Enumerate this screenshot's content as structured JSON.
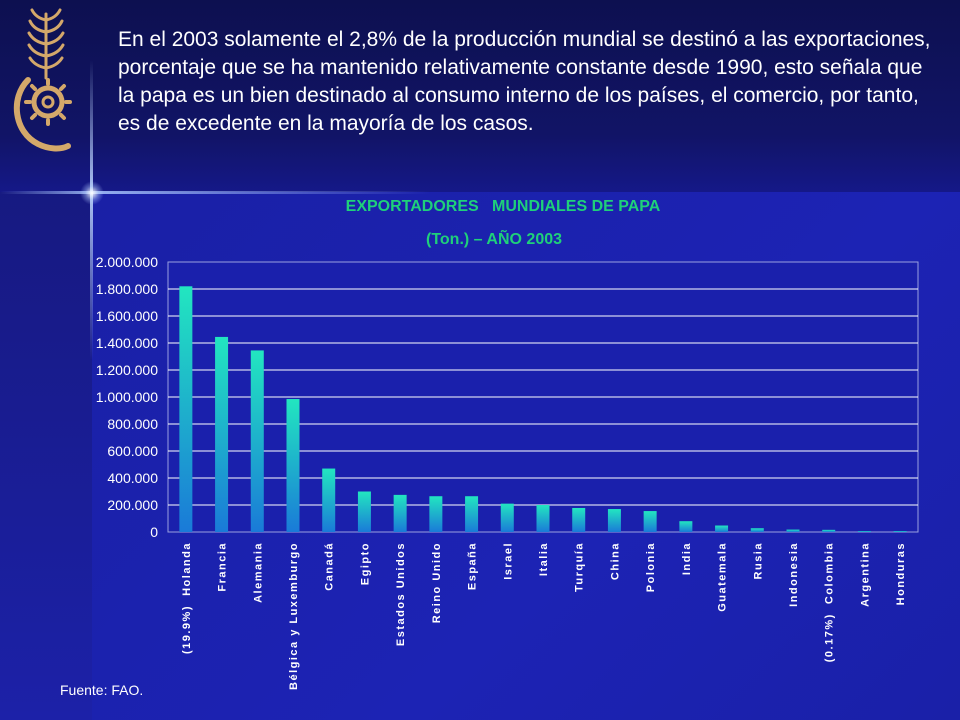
{
  "intro_text": "En el 2003 solamente el 2,8% de la producción mundial se destinó a las exportaciones, porcentaje que se ha mantenido relativamente constante desde 1990, esto señala que la papa es un bien destinado al consumo interno de los países, el comercio, por tanto, es de excedente en la mayoría de los casos.",
  "source": "Fuente: FAO.",
  "colors": {
    "title": "#1fd07a",
    "bar_top": "#22e6c0",
    "bar_bottom": "#1a7ad8",
    "axis_text": "#ffffff",
    "plot_bg": "#1a20ac",
    "logo": "#d4a86a"
  },
  "logo_icon": "wheat-gear-logo-icon",
  "chart_data": {
    "type": "bar",
    "title": "EXPORTADORES   MUNDIALES DE PAPA",
    "subtitle": "(Ton.) – AÑO 2003",
    "categories": [
      "(19.9%)  Holanda",
      "Francia",
      "Alemania",
      "Bélgica y Luxemburgo",
      "Canadá",
      "Egipto",
      "Estados Unidos",
      "Reino Unido",
      "España",
      "Israel",
      "Italia",
      "Turquía",
      "China",
      "Polonia",
      "India",
      "Guatemala",
      "Rusia",
      "Indonesia",
      "(0.17%)  Colombia",
      "Argentina",
      "Honduras"
    ],
    "values": [
      1820000,
      1445000,
      1345000,
      985000,
      470000,
      300000,
      275000,
      265000,
      265000,
      210000,
      200000,
      178000,
      170000,
      155000,
      80000,
      48000,
      28000,
      18000,
      16000,
      7000,
      1000
    ],
    "ylim": [
      0,
      2000000
    ],
    "yticks": [
      "0",
      "200.000",
      "400.000",
      "600.000",
      "800.000",
      "1.000.000",
      "1.200.000",
      "1.400.000",
      "1.600.000",
      "1.800.000",
      "2.000.000"
    ],
    "ytick_values": [
      0,
      200000,
      400000,
      600000,
      800000,
      1000000,
      1200000,
      1400000,
      1600000,
      1800000,
      2000000
    ],
    "grid": true,
    "legend": "none"
  }
}
